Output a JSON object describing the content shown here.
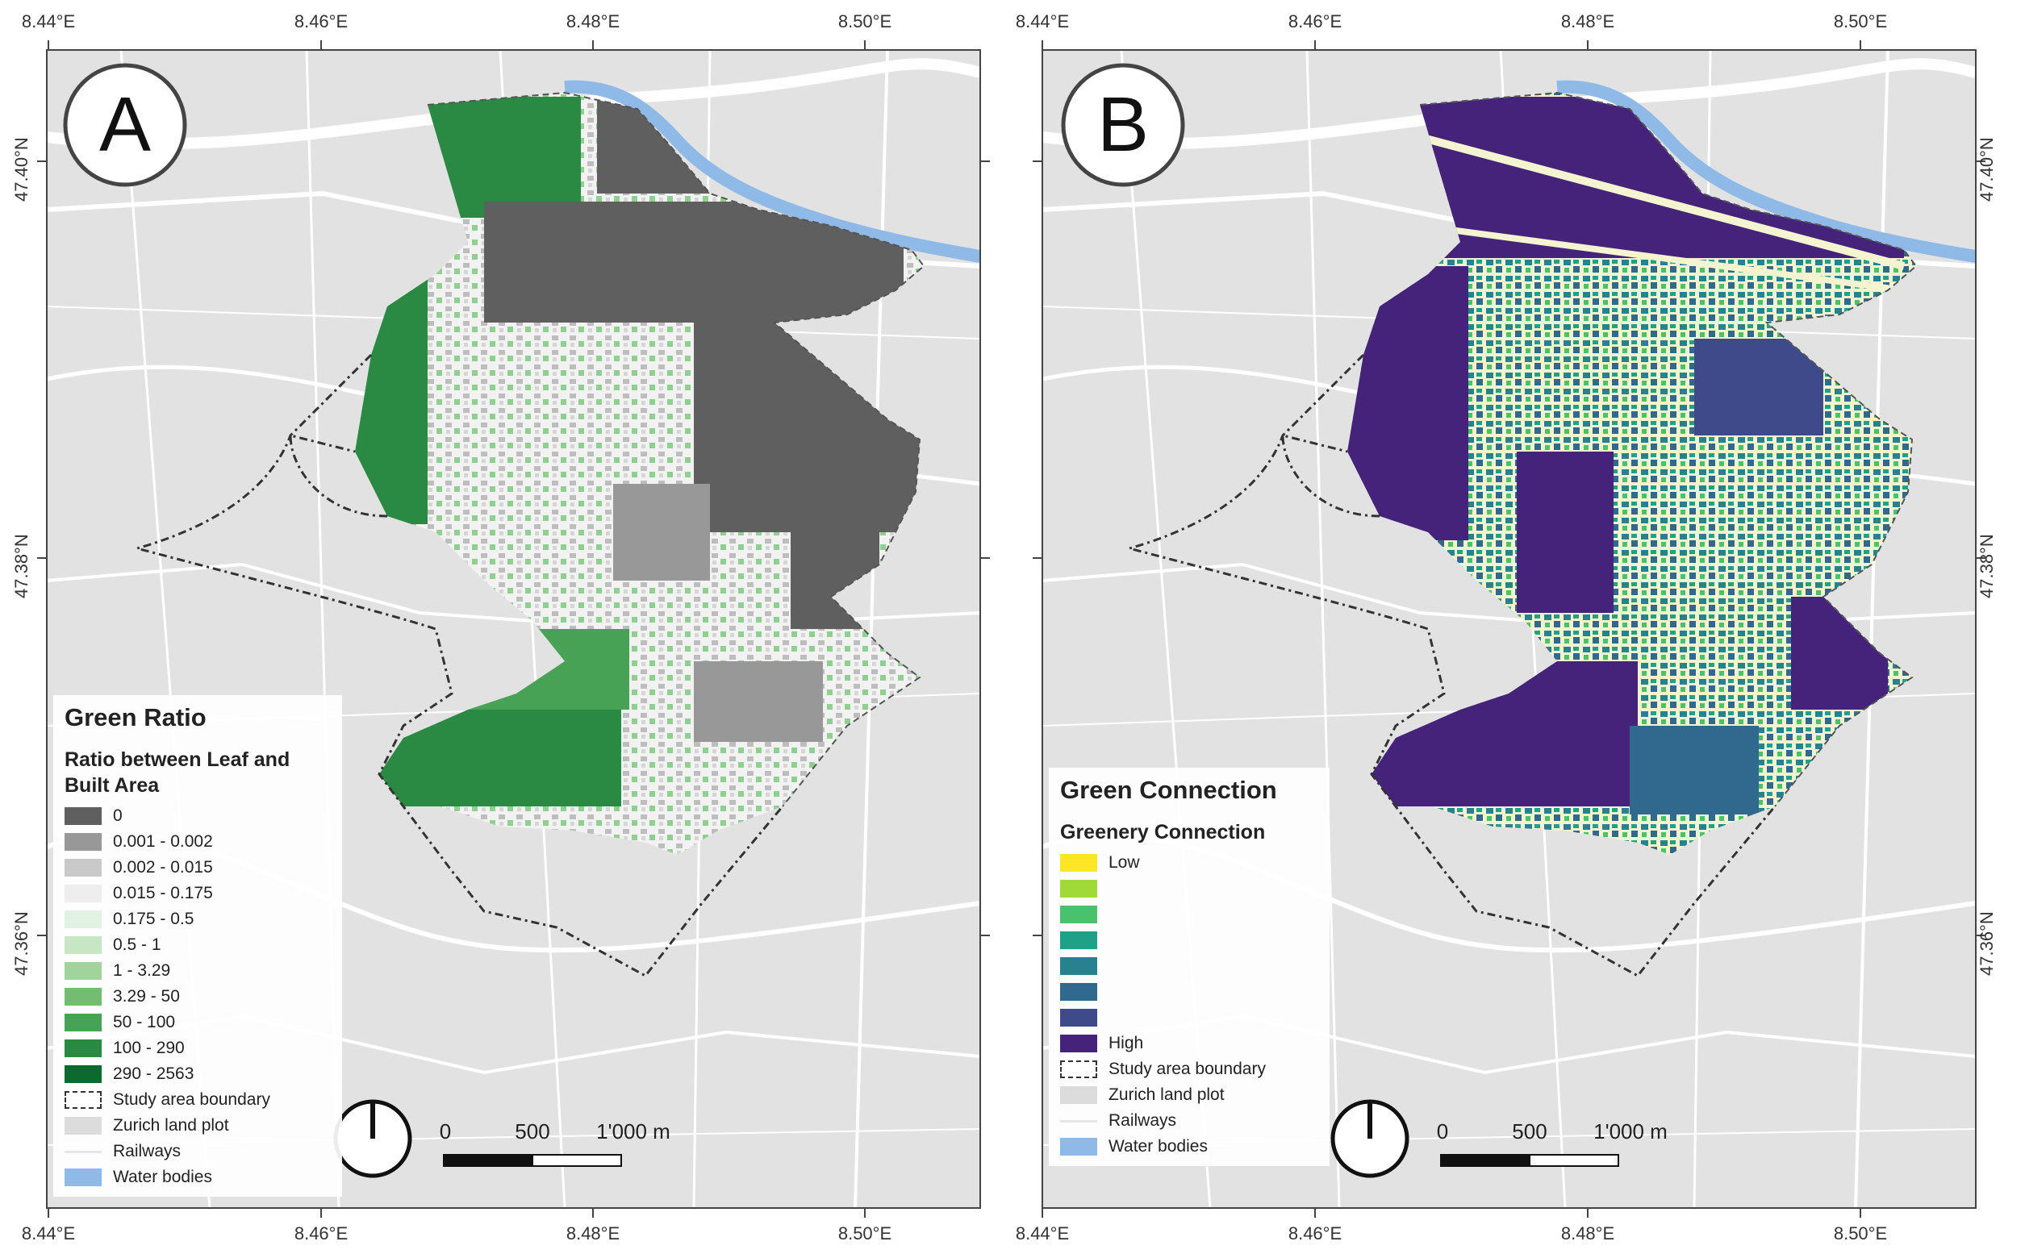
{
  "panels": [
    {
      "letter": "A",
      "lon_ticks": [
        "8.44°E",
        "8.46°E",
        "8.48°E",
        "8.50°E"
      ],
      "lat_ticks": [
        "47.40°N",
        "47.38°N",
        "47.36°N"
      ],
      "legend": {
        "title": "Green Ratio",
        "subtitle": "Ratio between Leaf and Built Area",
        "items": [
          {
            "label": "0",
            "color": "#5f5f5f"
          },
          {
            "label": "0.001 - 0.002",
            "color": "#989898"
          },
          {
            "label": "0.002 - 0.015",
            "color": "#c9c9c9"
          },
          {
            "label": "0.015 - 0.175",
            "color": "#eeeeee"
          },
          {
            "label": "0.175 - 0.5",
            "color": "#e2f2e2"
          },
          {
            "label": "0.5 - 1",
            "color": "#c6e6c4"
          },
          {
            "label": "1 - 3.29",
            "color": "#a1d49d"
          },
          {
            "label": "3.29 - 50",
            "color": "#72bd72"
          },
          {
            "label": "50 - 100",
            "color": "#48a256"
          },
          {
            "label": "100 - 290",
            "color": "#2a8a44"
          },
          {
            "label": "290 - 2563",
            "color": "#0b6a2c"
          }
        ],
        "extras": [
          {
            "label": "Study area boundary",
            "type": "boundary"
          },
          {
            "label": "Zurich land plot",
            "type": "land",
            "color": "#dcdcdc"
          },
          {
            "label": "Railways",
            "type": "rail"
          },
          {
            "label": "Water bodies",
            "type": "water",
            "color": "#8fb9e6"
          }
        ]
      },
      "scale": {
        "labels": [
          "0",
          "500",
          "1'000 m"
        ]
      }
    },
    {
      "letter": "B",
      "lon_ticks": [
        "8.44°E",
        "8.46°E",
        "8.48°E",
        "8.50°E"
      ],
      "lat_ticks": [
        "47.40°N",
        "47.38°N",
        "47.36°N"
      ],
      "legend": {
        "title": "Green Connection",
        "subtitle": "Greenery Connection",
        "items": [
          {
            "label": "Low",
            "color": "#fde725"
          },
          {
            "label": "",
            "color": "#a0da39"
          },
          {
            "label": "",
            "color": "#4ac16d"
          },
          {
            "label": "",
            "color": "#1fa187"
          },
          {
            "label": "",
            "color": "#26828e"
          },
          {
            "label": "",
            "color": "#31688e"
          },
          {
            "label": "",
            "color": "#3e4a89"
          },
          {
            "label": "High",
            "color": "#46237a"
          }
        ],
        "extras": [
          {
            "label": "Study area boundary",
            "type": "boundary"
          },
          {
            "label": "Zurich land plot",
            "type": "land",
            "color": "#dcdcdc"
          },
          {
            "label": "Railways",
            "type": "rail"
          },
          {
            "label": "Water bodies",
            "type": "water",
            "color": "#8fb9e6"
          }
        ]
      },
      "scale": {
        "labels": [
          "0",
          "500",
          "1'000 m"
        ]
      }
    }
  ]
}
